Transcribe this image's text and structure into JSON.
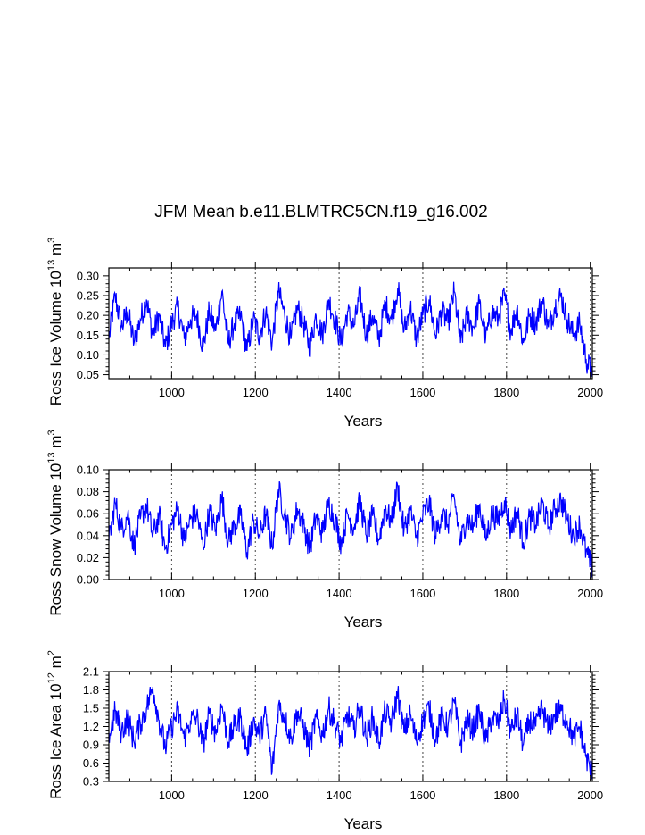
{
  "figure": {
    "title": "JFM Mean b.e11.BLMTRC5CN.f19_g16.002"
  },
  "colors": {
    "line": "#0000ff",
    "axis": "#000000",
    "grid": "#444444"
  },
  "chart_data": [
    {
      "type": "line",
      "xlabel": "Years",
      "ylabel": {
        "prefix": "Ross Ice Volume 10",
        "exp": "13",
        "unit": " m",
        "unit_exp": "3"
      },
      "xlim": [
        850,
        2005
      ],
      "ylim": [
        0.04,
        0.32
      ],
      "xticks": [
        "1000",
        "1200",
        "1400",
        "1600",
        "1800",
        "2000"
      ],
      "yticks": [
        "0.05",
        "0.10",
        "0.15",
        "0.20",
        "0.25",
        "0.30"
      ],
      "grid_x": true,
      "series": [
        {
          "x": [
            850,
            865,
            880,
            895,
            910,
            925,
            940,
            955,
            970,
            985,
            1000,
            1015,
            1030,
            1045,
            1060,
            1075,
            1090,
            1105,
            1120,
            1135,
            1150,
            1165,
            1180,
            1195,
            1210,
            1225,
            1240,
            1255,
            1270,
            1285,
            1300,
            1315,
            1330,
            1345,
            1360,
            1375,
            1390,
            1405,
            1420,
            1435,
            1450,
            1465,
            1480,
            1495,
            1510,
            1525,
            1540,
            1555,
            1570,
            1585,
            1600,
            1615,
            1630,
            1645,
            1660,
            1675,
            1690,
            1705,
            1720,
            1735,
            1750,
            1765,
            1780,
            1795,
            1810,
            1825,
            1840,
            1855,
            1870,
            1885,
            1900,
            1915,
            1930,
            1945,
            1960,
            1975,
            1990,
            2005
          ],
          "values": [
            0.14,
            0.25,
            0.17,
            0.21,
            0.13,
            0.19,
            0.24,
            0.15,
            0.2,
            0.12,
            0.18,
            0.22,
            0.14,
            0.19,
            0.2,
            0.12,
            0.21,
            0.16,
            0.26,
            0.13,
            0.18,
            0.2,
            0.11,
            0.19,
            0.15,
            0.21,
            0.13,
            0.26,
            0.2,
            0.14,
            0.22,
            0.18,
            0.12,
            0.2,
            0.15,
            0.24,
            0.19,
            0.13,
            0.21,
            0.17,
            0.25,
            0.15,
            0.2,
            0.14,
            0.23,
            0.19,
            0.27,
            0.16,
            0.22,
            0.14,
            0.2,
            0.24,
            0.15,
            0.21,
            0.18,
            0.26,
            0.13,
            0.2,
            0.17,
            0.23,
            0.14,
            0.21,
            0.19,
            0.25,
            0.16,
            0.22,
            0.13,
            0.2,
            0.18,
            0.24,
            0.17,
            0.22,
            0.25,
            0.19,
            0.15,
            0.18,
            0.09,
            0.05
          ]
        }
      ]
    },
    {
      "type": "line",
      "xlabel": "Years",
      "ylabel": {
        "prefix": "Ross Snow Volume 10",
        "exp": "13",
        "unit": " m",
        "unit_exp": "3"
      },
      "xlim": [
        850,
        2005
      ],
      "ylim": [
        0.0,
        0.1
      ],
      "xticks": [
        "1000",
        "1200",
        "1400",
        "1600",
        "1800",
        "2000"
      ],
      "yticks": [
        "0.00",
        "0.02",
        "0.04",
        "0.06",
        "0.08",
        "0.10"
      ],
      "grid_x": true,
      "series": [
        {
          "x": [
            850,
            865,
            880,
            895,
            910,
            925,
            940,
            955,
            970,
            985,
            1000,
            1015,
            1030,
            1045,
            1060,
            1075,
            1090,
            1105,
            1120,
            1135,
            1150,
            1165,
            1180,
            1195,
            1210,
            1225,
            1240,
            1255,
            1270,
            1285,
            1300,
            1315,
            1330,
            1345,
            1360,
            1375,
            1390,
            1405,
            1420,
            1435,
            1450,
            1465,
            1480,
            1495,
            1510,
            1525,
            1540,
            1555,
            1570,
            1585,
            1600,
            1615,
            1630,
            1645,
            1660,
            1675,
            1690,
            1705,
            1720,
            1735,
            1750,
            1765,
            1780,
            1795,
            1810,
            1825,
            1840,
            1855,
            1870,
            1885,
            1900,
            1915,
            1930,
            1945,
            1960,
            1975,
            1990,
            2005
          ],
          "values": [
            0.035,
            0.07,
            0.045,
            0.06,
            0.03,
            0.055,
            0.068,
            0.04,
            0.058,
            0.028,
            0.05,
            0.065,
            0.035,
            0.055,
            0.06,
            0.03,
            0.062,
            0.045,
            0.075,
            0.034,
            0.05,
            0.058,
            0.025,
            0.054,
            0.04,
            0.06,
            0.03,
            0.082,
            0.06,
            0.038,
            0.065,
            0.05,
            0.028,
            0.058,
            0.042,
            0.07,
            0.055,
            0.033,
            0.06,
            0.047,
            0.072,
            0.04,
            0.058,
            0.036,
            0.066,
            0.052,
            0.085,
            0.044,
            0.063,
            0.038,
            0.058,
            0.07,
            0.04,
            0.06,
            0.05,
            0.075,
            0.033,
            0.057,
            0.047,
            0.068,
            0.037,
            0.06,
            0.054,
            0.072,
            0.044,
            0.063,
            0.034,
            0.057,
            0.05,
            0.07,
            0.048,
            0.064,
            0.072,
            0.055,
            0.04,
            0.05,
            0.025,
            0.01
          ]
        }
      ]
    },
    {
      "type": "line",
      "xlabel": "Years",
      "ylabel": {
        "prefix": "Ross Ice Area 10",
        "exp": "12",
        "unit": " m",
        "unit_exp": "2"
      },
      "xlim": [
        850,
        2005
      ],
      "ylim": [
        0.3,
        2.1
      ],
      "xticks": [
        "1000",
        "1200",
        "1400",
        "1600",
        "1800",
        "2000"
      ],
      "yticks": [
        "0.3",
        "0.6",
        "0.9",
        "1.2",
        "1.5",
        "1.8",
        "2.1"
      ],
      "grid_x": true,
      "series": [
        {
          "x": [
            850,
            865,
            880,
            895,
            910,
            925,
            940,
            955,
            970,
            985,
            1000,
            1015,
            1030,
            1045,
            1060,
            1075,
            1090,
            1105,
            1120,
            1135,
            1150,
            1165,
            1180,
            1195,
            1210,
            1225,
            1240,
            1255,
            1270,
            1285,
            1300,
            1315,
            1330,
            1345,
            1360,
            1375,
            1390,
            1405,
            1420,
            1435,
            1450,
            1465,
            1480,
            1495,
            1510,
            1525,
            1540,
            1555,
            1570,
            1585,
            1600,
            1615,
            1630,
            1645,
            1660,
            1675,
            1690,
            1705,
            1720,
            1735,
            1750,
            1765,
            1780,
            1795,
            1810,
            1825,
            1840,
            1855,
            1870,
            1885,
            1900,
            1915,
            1930,
            1945,
            1960,
            1975,
            1990,
            2005
          ],
          "values": [
            1.0,
            1.45,
            1.1,
            1.35,
            0.95,
            1.25,
            1.5,
            1.85,
            1.3,
            0.85,
            1.2,
            1.45,
            1.0,
            1.3,
            1.35,
            0.9,
            1.4,
            1.1,
            1.55,
            0.95,
            1.2,
            1.35,
            0.8,
            1.3,
            1.05,
            1.4,
            0.45,
            1.55,
            1.35,
            1.0,
            1.45,
            1.2,
            0.85,
            1.35,
            1.05,
            1.5,
            1.25,
            0.95,
            1.4,
            1.15,
            1.55,
            1.0,
            1.35,
            0.95,
            1.45,
            1.25,
            1.75,
            1.1,
            1.4,
            0.95,
            1.3,
            1.5,
            1.0,
            1.35,
            1.2,
            1.6,
            0.9,
            1.3,
            1.15,
            1.45,
            0.95,
            1.35,
            1.25,
            1.65,
            1.1,
            1.4,
            0.9,
            1.3,
            1.2,
            1.5,
            1.15,
            1.4,
            1.45,
            1.3,
            1.0,
            1.2,
            0.7,
            0.4
          ]
        }
      ]
    }
  ]
}
